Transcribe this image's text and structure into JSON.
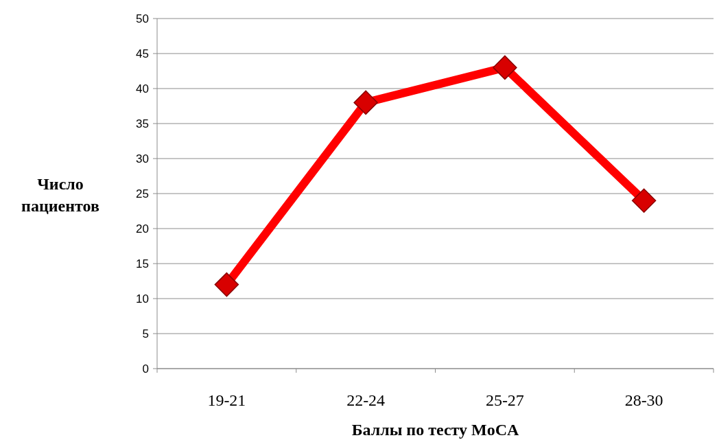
{
  "chart_data": {
    "type": "line",
    "xlabel": "Баллы по тесту MoCA",
    "ylabel": "Число пациентов",
    "categories": [
      "19-21",
      "22-24",
      "25-27",
      "28-30"
    ],
    "series": [
      {
        "color": "#ff0000",
        "values": [
          12,
          38,
          43,
          24
        ]
      }
    ],
    "ylim": [
      0,
      50
    ],
    "yticks": [
      0,
      5,
      10,
      15,
      20,
      25,
      30,
      35,
      40,
      45,
      50
    ],
    "grid": "y",
    "marker": "diamond",
    "line_style": "solid"
  }
}
